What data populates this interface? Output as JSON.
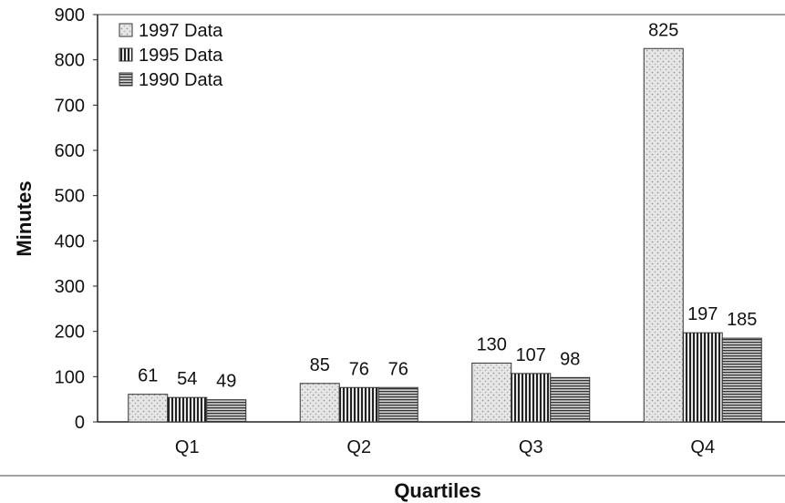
{
  "chart_data": {
    "type": "bar",
    "categories": [
      "Q1",
      "Q2",
      "Q3",
      "Q4"
    ],
    "series": [
      {
        "name": "1997 Data",
        "values": [
          61,
          85,
          130,
          825
        ],
        "pattern": "dots"
      },
      {
        "name": "1995 Data",
        "values": [
          54,
          76,
          107,
          197
        ],
        "pattern": "vertical"
      },
      {
        "name": "1990 Data",
        "values": [
          49,
          76,
          98,
          185
        ],
        "pattern": "horizontal"
      }
    ],
    "xlabel": "Quartiles",
    "ylabel": "Minutes",
    "ylim": [
      0,
      900
    ],
    "yticks": [
      0,
      100,
      200,
      300,
      400,
      500,
      600,
      700,
      800,
      900
    ],
    "legend_position": "top-left",
    "grid": false
  }
}
